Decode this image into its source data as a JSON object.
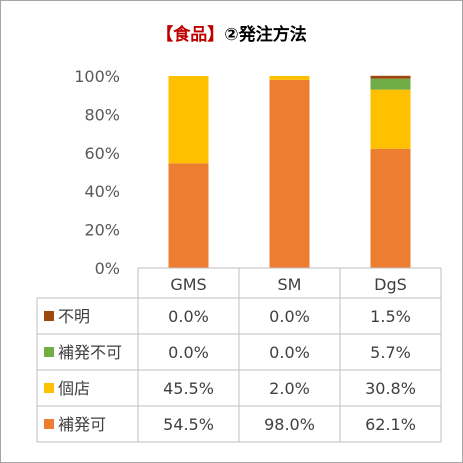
{
  "title_bracket": "【食品】",
  "title_rest": "②発注方法",
  "chart_data": {
    "type": "bar",
    "stacked": true,
    "categories": [
      "GMS",
      "SM",
      "DgS"
    ],
    "yticks": [
      "0%",
      "20%",
      "40%",
      "60%",
      "80%",
      "100%"
    ],
    "ylim": [
      0,
      100
    ],
    "series": [
      {
        "name": "補発可",
        "color": "#ed7d31",
        "values": [
          54.5,
          98.0,
          62.1
        ],
        "labels": [
          "54.5%",
          "98.0%",
          "62.1%"
        ]
      },
      {
        "name": "個店",
        "color": "#ffc000",
        "values": [
          45.5,
          2.0,
          30.8
        ],
        "labels": [
          "45.5%",
          "2.0%",
          "30.8%"
        ]
      },
      {
        "name": "補発不可",
        "color": "#70ad47",
        "values": [
          0.0,
          0.0,
          5.7
        ],
        "labels": [
          "0.0%",
          "0.0%",
          "5.7%"
        ]
      },
      {
        "name": "不明",
        "color": "#9e480e",
        "values": [
          0.0,
          0.0,
          1.5
        ],
        "labels": [
          "0.0%",
          "0.0%",
          "1.5%"
        ]
      }
    ]
  }
}
